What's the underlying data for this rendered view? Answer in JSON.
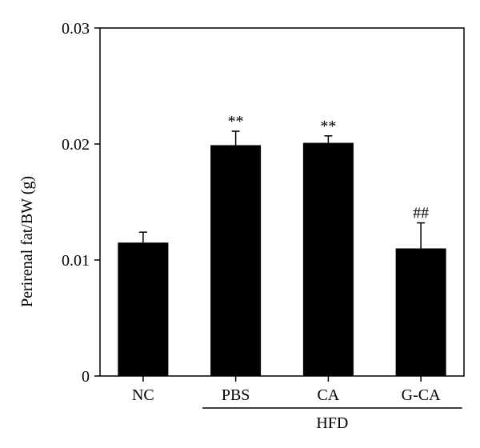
{
  "chart_data": {
    "type": "bar",
    "title": "",
    "xlabel": "",
    "ylabel": "Perirenal fat/BW (g)",
    "ylim": [
      0,
      0.03
    ],
    "yticks": [
      0,
      0.01,
      0.02,
      0.03
    ],
    "ytick_labels": [
      "0",
      "0.01",
      "0.02",
      "0.03"
    ],
    "categories": [
      "NC",
      "PBS",
      "CA",
      "G-CA"
    ],
    "values": [
      0.0115,
      0.0199,
      0.0201,
      0.011
    ],
    "errors": [
      0.0009,
      0.0012,
      0.0006,
      0.0022
    ],
    "significance": [
      "",
      "**",
      "**",
      "##"
    ],
    "group": {
      "label": "HFD",
      "categories": [
        "PBS",
        "CA",
        "G-CA"
      ]
    },
    "bar_color": "#000000",
    "grid": false,
    "legend": "none"
  }
}
